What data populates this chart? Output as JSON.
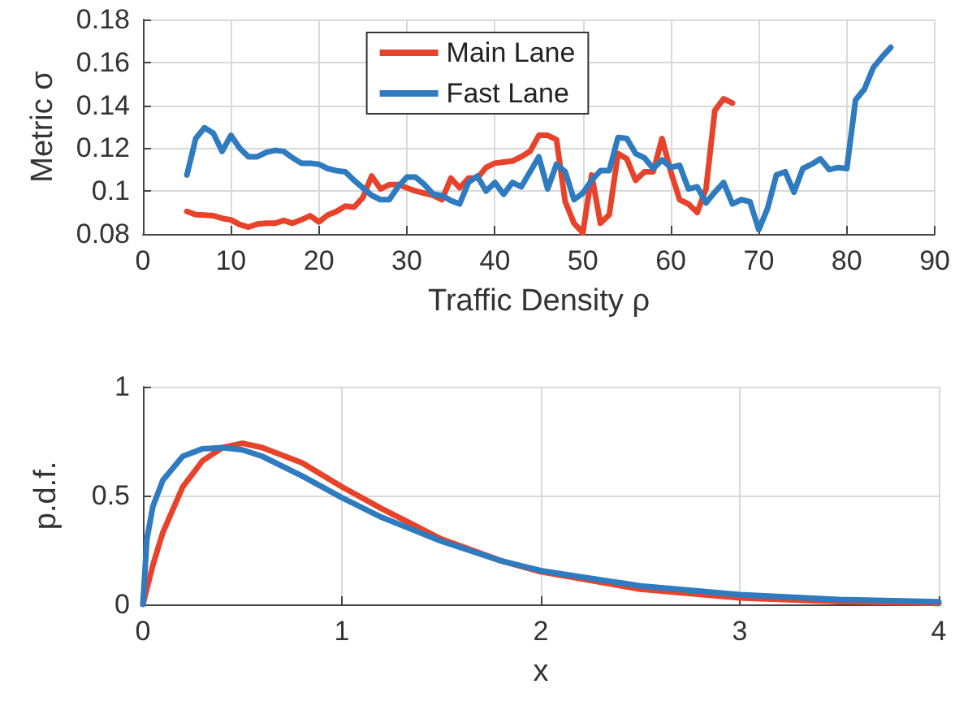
{
  "chart_data": [
    {
      "type": "line",
      "xlabel": "Traffic Density ρ",
      "ylabel": "Metric σ",
      "xlim": [
        0,
        90
      ],
      "xticks": [
        0,
        10,
        20,
        30,
        40,
        50,
        60,
        70,
        80,
        90
      ],
      "ylim": [
        0.08,
        0.18
      ],
      "yticks": [
        0.08,
        0.1,
        0.12,
        0.14,
        0.16,
        0.18
      ],
      "grid": true,
      "legend": "top",
      "marker": "none",
      "line_style": "solid",
      "series": [
        {
          "name": "Main Lane",
          "color": "#e8432a",
          "x": [
            5,
            6,
            7,
            8,
            9,
            10,
            11,
            12,
            13,
            14,
            15,
            16,
            17,
            18,
            19,
            20,
            21,
            22,
            23,
            24,
            25,
            26,
            27,
            28,
            29,
            30,
            31,
            32,
            33,
            34,
            35,
            36,
            37,
            38,
            39,
            40,
            41,
            42,
            43,
            44,
            45,
            46,
            47,
            48,
            49,
            50,
            51,
            52,
            53,
            54,
            55,
            56,
            57,
            58,
            59,
            60,
            61,
            62,
            63,
            64,
            65,
            66,
            67
          ],
          "values": [
            0.0905,
            0.089,
            0.0888,
            0.0885,
            0.0873,
            0.0866,
            0.0844,
            0.0832,
            0.0846,
            0.085,
            0.085,
            0.0863,
            0.085,
            0.0866,
            0.0885,
            0.0856,
            0.0888,
            0.0905,
            0.093,
            0.0925,
            0.097,
            0.107,
            0.101,
            0.103,
            0.103,
            0.1015,
            0.1,
            0.099,
            0.098,
            0.096,
            0.106,
            0.1015,
            0.106,
            0.106,
            0.111,
            0.113,
            0.1135,
            0.114,
            0.116,
            0.1185,
            0.126,
            0.126,
            0.124,
            0.095,
            0.085,
            0.0805,
            0.1075,
            0.085,
            0.089,
            0.1175,
            0.115,
            0.105,
            0.109,
            0.109,
            0.1245,
            0.109,
            0.096,
            0.094,
            0.09,
            0.101,
            0.1375,
            0.143,
            0.141
          ]
        },
        {
          "name": "Fast Lane",
          "color": "#2f7bc0",
          "x": [
            5,
            6,
            7,
            8,
            9,
            10,
            11,
            12,
            13,
            14,
            15,
            16,
            17,
            18,
            19,
            20,
            21,
            22,
            23,
            24,
            25,
            26,
            27,
            28,
            29,
            30,
            31,
            32,
            33,
            34,
            35,
            36,
            37,
            38,
            39,
            40,
            41,
            42,
            43,
            44,
            45,
            46,
            47,
            48,
            49,
            50,
            51,
            52,
            53,
            54,
            55,
            56,
            57,
            58,
            59,
            60,
            61,
            62,
            63,
            64,
            65,
            66,
            67,
            68,
            69,
            70,
            71,
            72,
            73,
            74,
            75,
            76,
            77,
            78,
            79,
            80,
            81,
            82,
            83,
            84,
            85
          ],
          "values": [
            0.1075,
            0.1245,
            0.1295,
            0.127,
            0.1185,
            0.126,
            0.12,
            0.116,
            0.116,
            0.118,
            0.119,
            0.1185,
            0.1155,
            0.113,
            0.113,
            0.1125,
            0.1105,
            0.1095,
            0.109,
            0.105,
            0.1015,
            0.098,
            0.096,
            0.096,
            0.102,
            0.1065,
            0.1065,
            0.103,
            0.0985,
            0.098,
            0.0955,
            0.094,
            0.104,
            0.107,
            0.1,
            0.104,
            0.0985,
            0.104,
            0.102,
            0.109,
            0.116,
            0.101,
            0.1125,
            0.109,
            0.096,
            0.099,
            0.105,
            0.1095,
            0.1095,
            0.125,
            0.1245,
            0.1175,
            0.1155,
            0.1105,
            0.1145,
            0.111,
            0.112,
            0.101,
            0.102,
            0.0945,
            0.0995,
            0.104,
            0.094,
            0.096,
            0.095,
            0.082,
            0.092,
            0.1075,
            0.109,
            0.0995,
            0.1105,
            0.1125,
            0.115,
            0.11,
            0.111,
            0.1105,
            0.1425,
            0.1475,
            0.1575,
            0.1625,
            0.167
          ]
        }
      ]
    },
    {
      "type": "line",
      "xlabel": "x",
      "ylabel": "p.d.f.",
      "xlim": [
        0,
        4
      ],
      "xticks": [
        0,
        1,
        2,
        3,
        4
      ],
      "ylim": [
        0,
        1
      ],
      "yticks": [
        0,
        0.5,
        1
      ],
      "grid": true,
      "marker": "none",
      "line_style": "solid",
      "series": [
        {
          "color": "#e8432a",
          "x": [
            0,
            0.05,
            0.1,
            0.2,
            0.3,
            0.4,
            0.5,
            0.6,
            0.8,
            1,
            1.2,
            1.5,
            1.8,
            2,
            2.5,
            3,
            3.5,
            4
          ],
          "values": [
            0,
            0.18,
            0.33,
            0.54,
            0.66,
            0.72,
            0.74,
            0.72,
            0.65,
            0.54,
            0.44,
            0.3,
            0.2,
            0.15,
            0.07,
            0.03,
            0.013,
            0.005
          ]
        },
        {
          "color": "#2f7bc0",
          "x": [
            0,
            0.02,
            0.05,
            0.1,
            0.2,
            0.3,
            0.4,
            0.5,
            0.6,
            0.8,
            1,
            1.2,
            1.5,
            1.8,
            2,
            2.5,
            3,
            3.5,
            4
          ],
          "values": [
            0,
            0.3,
            0.45,
            0.57,
            0.68,
            0.715,
            0.72,
            0.71,
            0.68,
            0.59,
            0.49,
            0.4,
            0.29,
            0.2,
            0.155,
            0.085,
            0.045,
            0.022,
            0.012
          ]
        }
      ]
    }
  ]
}
